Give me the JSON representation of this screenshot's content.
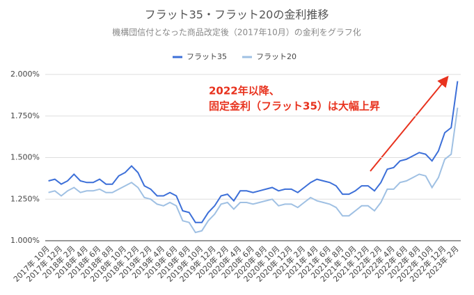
{
  "chart_data": {
    "type": "line",
    "title": "フラット35・フラット20の金利推移",
    "subtitle": "機構団信付となった商品改定後（2017年10月）の金利をグラフ化",
    "annotation": [
      "2022年以降、",
      "固定金利（フラット35）は大幅上昇"
    ],
    "categories": [
      "2017年 10月",
      null,
      "2017年 12月",
      null,
      "2018年 2月",
      null,
      "2018年 4月",
      null,
      "2018年 6月",
      null,
      "2018年 8月",
      null,
      "2018年 10月",
      null,
      "2018年 12月",
      null,
      "2019年 2月",
      null,
      "2019年 4月",
      null,
      "2019年 6月",
      null,
      "2019年 8月",
      null,
      "2019年 10月",
      null,
      "2019年 12月",
      null,
      "2020年 2月",
      null,
      "2020年 4月",
      null,
      "2020年 6月",
      null,
      "2020年 8月",
      null,
      "2020年 10月",
      null,
      "2020年 12月",
      null,
      "2021年 2月",
      null,
      "2021年 4月",
      null,
      "2021年 6月",
      null,
      "2021年 8月",
      null,
      "2021年 10月",
      null,
      "2021年 12月",
      null,
      "2022年 2月",
      null,
      "2022年 4月",
      null,
      "2022年 6月",
      null,
      "2022年 8月",
      null,
      "2022年 10月",
      null,
      "2022年 12月",
      null,
      "2023年 2月"
    ],
    "series": [
      {
        "name": "フラット35",
        "color": "#3c6fd8",
        "values": [
          1.36,
          1.37,
          1.34,
          1.36,
          1.4,
          1.36,
          1.35,
          1.35,
          1.37,
          1.34,
          1.34,
          1.39,
          1.41,
          1.45,
          1.41,
          1.33,
          1.31,
          1.27,
          1.27,
          1.29,
          1.27,
          1.18,
          1.17,
          1.11,
          1.11,
          1.17,
          1.21,
          1.27,
          1.28,
          1.24,
          1.3,
          1.3,
          1.29,
          1.3,
          1.31,
          1.32,
          1.3,
          1.31,
          1.31,
          1.29,
          1.32,
          1.35,
          1.37,
          1.36,
          1.35,
          1.33,
          1.28,
          1.28,
          1.3,
          1.33,
          1.33,
          1.3,
          1.35,
          1.43,
          1.44,
          1.48,
          1.49,
          1.51,
          1.53,
          1.52,
          1.48,
          1.54,
          1.65,
          1.68,
          1.96
        ]
      },
      {
        "name": "フラット20",
        "color": "#9fc0e3",
        "values": [
          1.29,
          1.3,
          1.27,
          1.3,
          1.32,
          1.29,
          1.3,
          1.3,
          1.31,
          1.29,
          1.29,
          1.31,
          1.33,
          1.35,
          1.32,
          1.26,
          1.25,
          1.22,
          1.21,
          1.23,
          1.21,
          1.12,
          1.11,
          1.05,
          1.06,
          1.12,
          1.16,
          1.22,
          1.23,
          1.19,
          1.23,
          1.23,
          1.22,
          1.23,
          1.24,
          1.25,
          1.21,
          1.22,
          1.22,
          1.2,
          1.23,
          1.26,
          1.24,
          1.23,
          1.22,
          1.2,
          1.15,
          1.15,
          1.18,
          1.21,
          1.21,
          1.18,
          1.23,
          1.31,
          1.31,
          1.35,
          1.36,
          1.38,
          1.4,
          1.39,
          1.32,
          1.38,
          1.49,
          1.52,
          1.8
        ]
      }
    ],
    "ylim": [
      1,
      2
    ],
    "yticks": [
      {
        "value": 1,
        "label": "1.000%"
      },
      {
        "value": 1.25,
        "label": "1.250%"
      },
      {
        "value": 1.5,
        "label": "1.500%"
      },
      {
        "value": 1.75,
        "label": "1.750%"
      },
      {
        "value": 2,
        "label": "2.000%"
      }
    ],
    "grid": true
  }
}
